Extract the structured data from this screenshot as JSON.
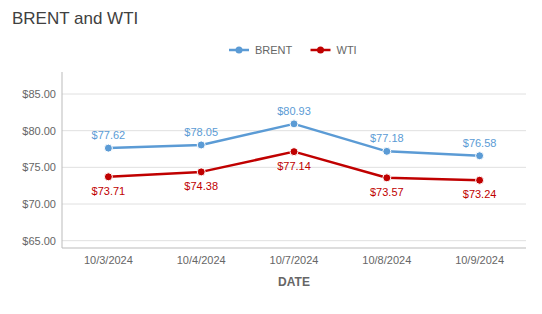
{
  "chart_data": {
    "type": "line",
    "title": "BRENT and WTI",
    "xlabel": "DATE",
    "categories": [
      "10/3/2024",
      "10/4/2024",
      "10/7/2024",
      "10/8/2024",
      "10/9/2024"
    ],
    "series": [
      {
        "name": "BRENT",
        "color": "#5B9BD5",
        "marker": "circle",
        "values": [
          77.62,
          78.05,
          80.93,
          77.18,
          76.58
        ],
        "value_labels": [
          "$77.62",
          "$78.05",
          "$80.93",
          "$77.18",
          "$76.58"
        ]
      },
      {
        "name": "WTI",
        "color": "#C00000",
        "marker": "circle",
        "values": [
          73.71,
          74.38,
          77.14,
          73.57,
          73.24
        ],
        "value_labels": [
          "$73.71",
          "$74.38",
          "$77.14",
          "$73.57",
          "$73.24"
        ]
      }
    ],
    "ylim": [
      64.0,
      88.0
    ],
    "yticks": [
      {
        "value": 65.0,
        "label": "$65.00"
      },
      {
        "value": 70.0,
        "label": "$70.00"
      },
      {
        "value": 75.0,
        "label": "$75.00"
      },
      {
        "value": 80.0,
        "label": "$80.00"
      },
      {
        "value": 85.0,
        "label": "$85.00"
      }
    ],
    "grid": true,
    "legend": "top",
    "data_labels": true
  }
}
